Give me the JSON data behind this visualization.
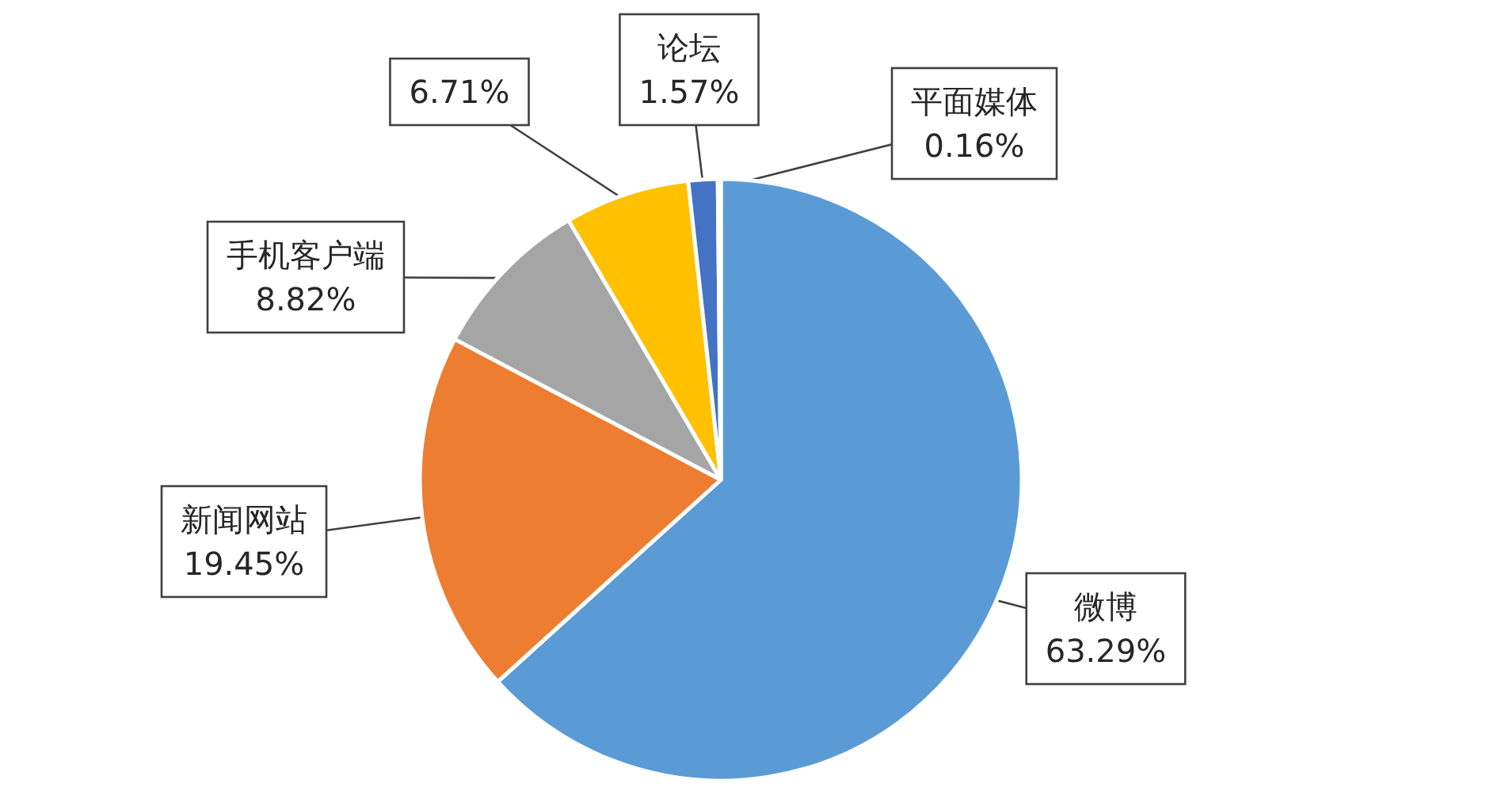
{
  "chart_data": {
    "type": "pie",
    "categories": [
      "微博",
      "新闻网站",
      "手机客户端",
      null,
      "论坛",
      "平面媒体"
    ],
    "values": [
      63.29,
      19.45,
      8.82,
      6.71,
      1.57,
      0.16
    ],
    "colors": [
      "#5b9bd5",
      "#ed7d31",
      "#a5a5a5",
      "#ffc000",
      "#4472c4",
      "#70ad47"
    ],
    "value_labels": [
      "63.29%",
      "19.45%",
      "8.82%",
      "6.71%",
      "1.57%",
      "0.16%"
    ]
  }
}
